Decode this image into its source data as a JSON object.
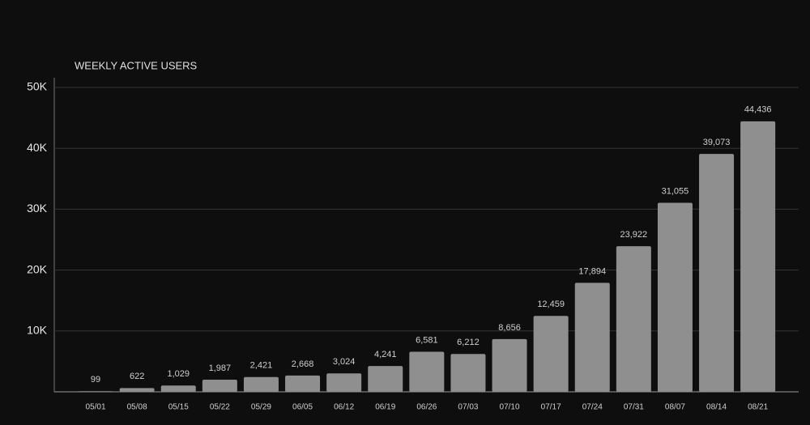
{
  "chart_data": {
    "type": "bar",
    "title": "WEEKLY ACTIVE USERS",
    "categories": [
      "05/01",
      "05/08",
      "05/15",
      "05/22",
      "05/29",
      "06/05",
      "06/12",
      "06/19",
      "06/26",
      "07/03",
      "07/10",
      "07/17",
      "07/24",
      "07/31",
      "08/07",
      "08/14",
      "08/21"
    ],
    "values": [
      99,
      622,
      1029,
      1987,
      2421,
      2668,
      3024,
      4241,
      6581,
      6212,
      8656,
      12459,
      17894,
      23922,
      31055,
      39073,
      44436
    ],
    "value_labels": [
      "99",
      "622",
      "1,029",
      "1,987",
      "2,421",
      "2,668",
      "3,024",
      "4,241",
      "6,581",
      "6,212",
      "8,656",
      "12,459",
      "17,894",
      "23,922",
      "31,055",
      "39,073",
      "44,436"
    ],
    "color": "#8f8f8f",
    "ylim": [
      0,
      50000
    ],
    "yticks": [
      {
        "value": 10000,
        "label": "10K"
      },
      {
        "value": 20000,
        "label": "20K"
      },
      {
        "value": 30000,
        "label": "30K"
      },
      {
        "value": 40000,
        "label": "40K"
      },
      {
        "value": 50000,
        "label": "50K"
      }
    ],
    "grid": true
  }
}
